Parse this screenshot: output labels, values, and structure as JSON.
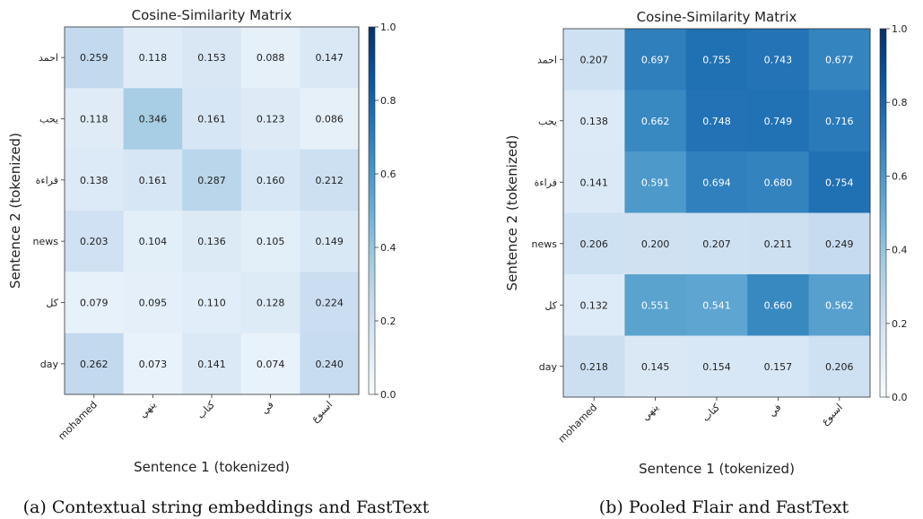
{
  "chart_data": [
    {
      "type": "heatmap",
      "title": "Cosine-Similarity Matrix",
      "xlabel": "Sentence 1 (tokenized)",
      "ylabel": "Sentence 2 (tokenized)",
      "x_categories": [
        "mohamed",
        "ينهي",
        "كتاب",
        "في",
        "اسبوع"
      ],
      "y_categories": [
        "احمد",
        "يحب",
        "قراءة",
        "news",
        "كل",
        "day"
      ],
      "values": [
        [
          0.259,
          0.118,
          0.153,
          0.088,
          0.147
        ],
        [
          0.118,
          0.346,
          0.161,
          0.123,
          0.086
        ],
        [
          0.138,
          0.161,
          0.287,
          0.16,
          0.212
        ],
        [
          0.203,
          0.104,
          0.136,
          0.105,
          0.149
        ],
        [
          0.079,
          0.095,
          0.11,
          0.128,
          0.224
        ],
        [
          0.262,
          0.073,
          0.141,
          0.074,
          0.24
        ]
      ],
      "value_labels": [
        [
          "0.259",
          "0.118",
          "0.153",
          "0.088",
          "0.147"
        ],
        [
          "0.118",
          "0.346",
          "0.161",
          "0.123",
          "0.086"
        ],
        [
          "0.138",
          "0.161",
          "0.287",
          "0.160",
          "0.212"
        ],
        [
          "0.203",
          "0.104",
          "0.136",
          "0.105",
          "0.149"
        ],
        [
          "0.079",
          "0.095",
          "0.110",
          "0.128",
          "0.224"
        ],
        [
          "0.262",
          "0.073",
          "0.141",
          "0.074",
          "0.240"
        ]
      ],
      "colorbar": {
        "range": [
          0,
          1
        ],
        "ticks": [
          "0.0",
          "0.2",
          "0.4",
          "0.6",
          "0.8",
          "1.0"
        ],
        "colormap": "Blues"
      },
      "caption": "(a) Contextual string embeddings and FastText"
    },
    {
      "type": "heatmap",
      "title": "Cosine-Similarity Matrix",
      "xlabel": "Sentence 1 (tokenized)",
      "ylabel": "Sentence 2 (tokenized)",
      "x_categories": [
        "mohamed",
        "ينهي",
        "كتاب",
        "في",
        "اسبوع"
      ],
      "y_categories": [
        "احمد",
        "يحب",
        "قراءة",
        "news",
        "كل",
        "day"
      ],
      "values": [
        [
          0.207,
          0.697,
          0.755,
          0.743,
          0.677
        ],
        [
          0.138,
          0.662,
          0.748,
          0.749,
          0.716
        ],
        [
          0.141,
          0.591,
          0.694,
          0.68,
          0.754
        ],
        [
          0.206,
          0.2,
          0.207,
          0.211,
          0.249
        ],
        [
          0.132,
          0.551,
          0.541,
          0.66,
          0.562
        ],
        [
          0.218,
          0.145,
          0.154,
          0.157,
          0.206
        ]
      ],
      "value_labels": [
        [
          "0.207",
          "0.697",
          "0.755",
          "0.743",
          "0.677"
        ],
        [
          "0.138",
          "0.662",
          "0.748",
          "0.749",
          "0.716"
        ],
        [
          "0.141",
          "0.591",
          "0.694",
          "0.680",
          "0.754"
        ],
        [
          "0.206",
          "0.200",
          "0.207",
          "0.211",
          "0.249"
        ],
        [
          "0.132",
          "0.551",
          "0.541",
          "0.660",
          "0.562"
        ],
        [
          "0.218",
          "0.145",
          "0.154",
          "0.157",
          "0.206"
        ]
      ],
      "colorbar": {
        "range": [
          0,
          1
        ],
        "ticks": [
          "0.0",
          "0.2",
          "0.4",
          "0.6",
          "0.8",
          "1.0"
        ],
        "colormap": "Blues"
      },
      "caption": "(b) Pooled Flair and FastText"
    }
  ]
}
